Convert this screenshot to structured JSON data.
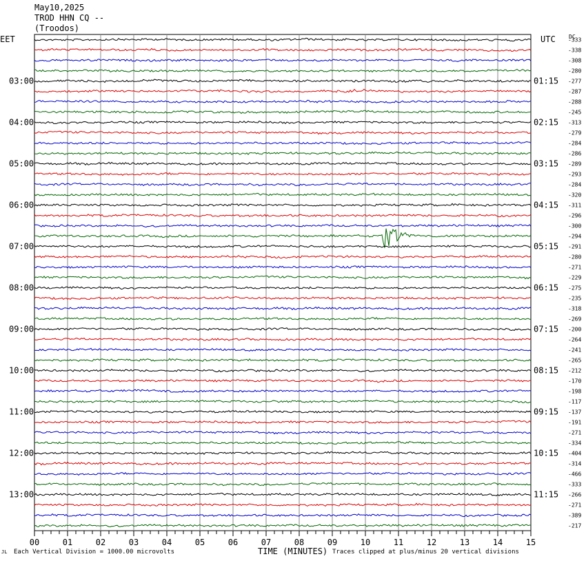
{
  "header": {
    "date": "May10,2025",
    "station": "TROD HHN CQ --",
    "location": "(Troodos)",
    "left_zone": "EET",
    "right_zone": "UTC",
    "dc_label": "DC"
  },
  "footer": {
    "x_axis_title": "TIME (MINUTES)",
    "scale_note": "Each Vertical Division = 1000.00 microvolts",
    "clip_note": "Traces clipped at plus/minus 20 vertical divisions",
    "corner_mark": "JL"
  },
  "colors": {
    "trace_cycle": [
      "#000000",
      "#dd0000",
      "#0000cc",
      "#006600"
    ],
    "grid": "#888888",
    "frame": "#000000"
  },
  "chart_data": {
    "type": "line",
    "title": "",
    "xlabel": "TIME (MINUTES)",
    "xlim": [
      0,
      15
    ],
    "x_ticks": [
      "00",
      "01",
      "02",
      "03",
      "04",
      "05",
      "06",
      "07",
      "08",
      "09",
      "10",
      "11",
      "12",
      "13",
      "14",
      "15"
    ],
    "trace_count": 48,
    "traces_per_hour": 4,
    "left_hour_labels": [
      "03:00",
      "04:00",
      "05:00",
      "06:00",
      "07:00",
      "08:00",
      "09:00",
      "10:00",
      "11:00",
      "12:00",
      "13:00"
    ],
    "right_hour_labels": [
      "01:15",
      "02:15",
      "03:15",
      "04:15",
      "05:15",
      "06:15",
      "07:15",
      "08:15",
      "09:15",
      "10:15",
      "11:15"
    ],
    "hour_label_first_trace": 4,
    "dc_offsets": [
      "-333",
      "-338",
      "-308",
      "-280",
      "-277",
      "-287",
      "-288",
      "-245",
      "-313",
      "-279",
      "-284",
      "-286",
      "-289",
      "-293",
      "-284",
      "-320",
      "-311",
      "-296",
      "-300",
      "-294",
      "-291",
      "-280",
      "-271",
      "-229",
      "-275",
      "-235",
      "-318",
      "-269",
      "-200",
      "-264",
      "-241",
      "-265",
      "-212",
      "-170",
      "-198",
      "-117",
      "-137",
      "-191",
      "-271",
      "-334",
      "-404",
      "-314",
      "-466",
      "-333",
      "-266",
      "-271",
      "-389",
      "-217"
    ],
    "events": [
      {
        "trace": 5,
        "start_min": 9.0,
        "end_min": 10.3,
        "amp_div": 0.35,
        "kind": "small"
      },
      {
        "trace": 14,
        "start_min": 3.9,
        "end_min": 4.4,
        "amp_div": 0.25,
        "kind": "small"
      },
      {
        "trace": 19,
        "start_min": 10.5,
        "end_min": 12.4,
        "amp_div": 3.8,
        "kind": "quake"
      }
    ],
    "grid": true
  }
}
